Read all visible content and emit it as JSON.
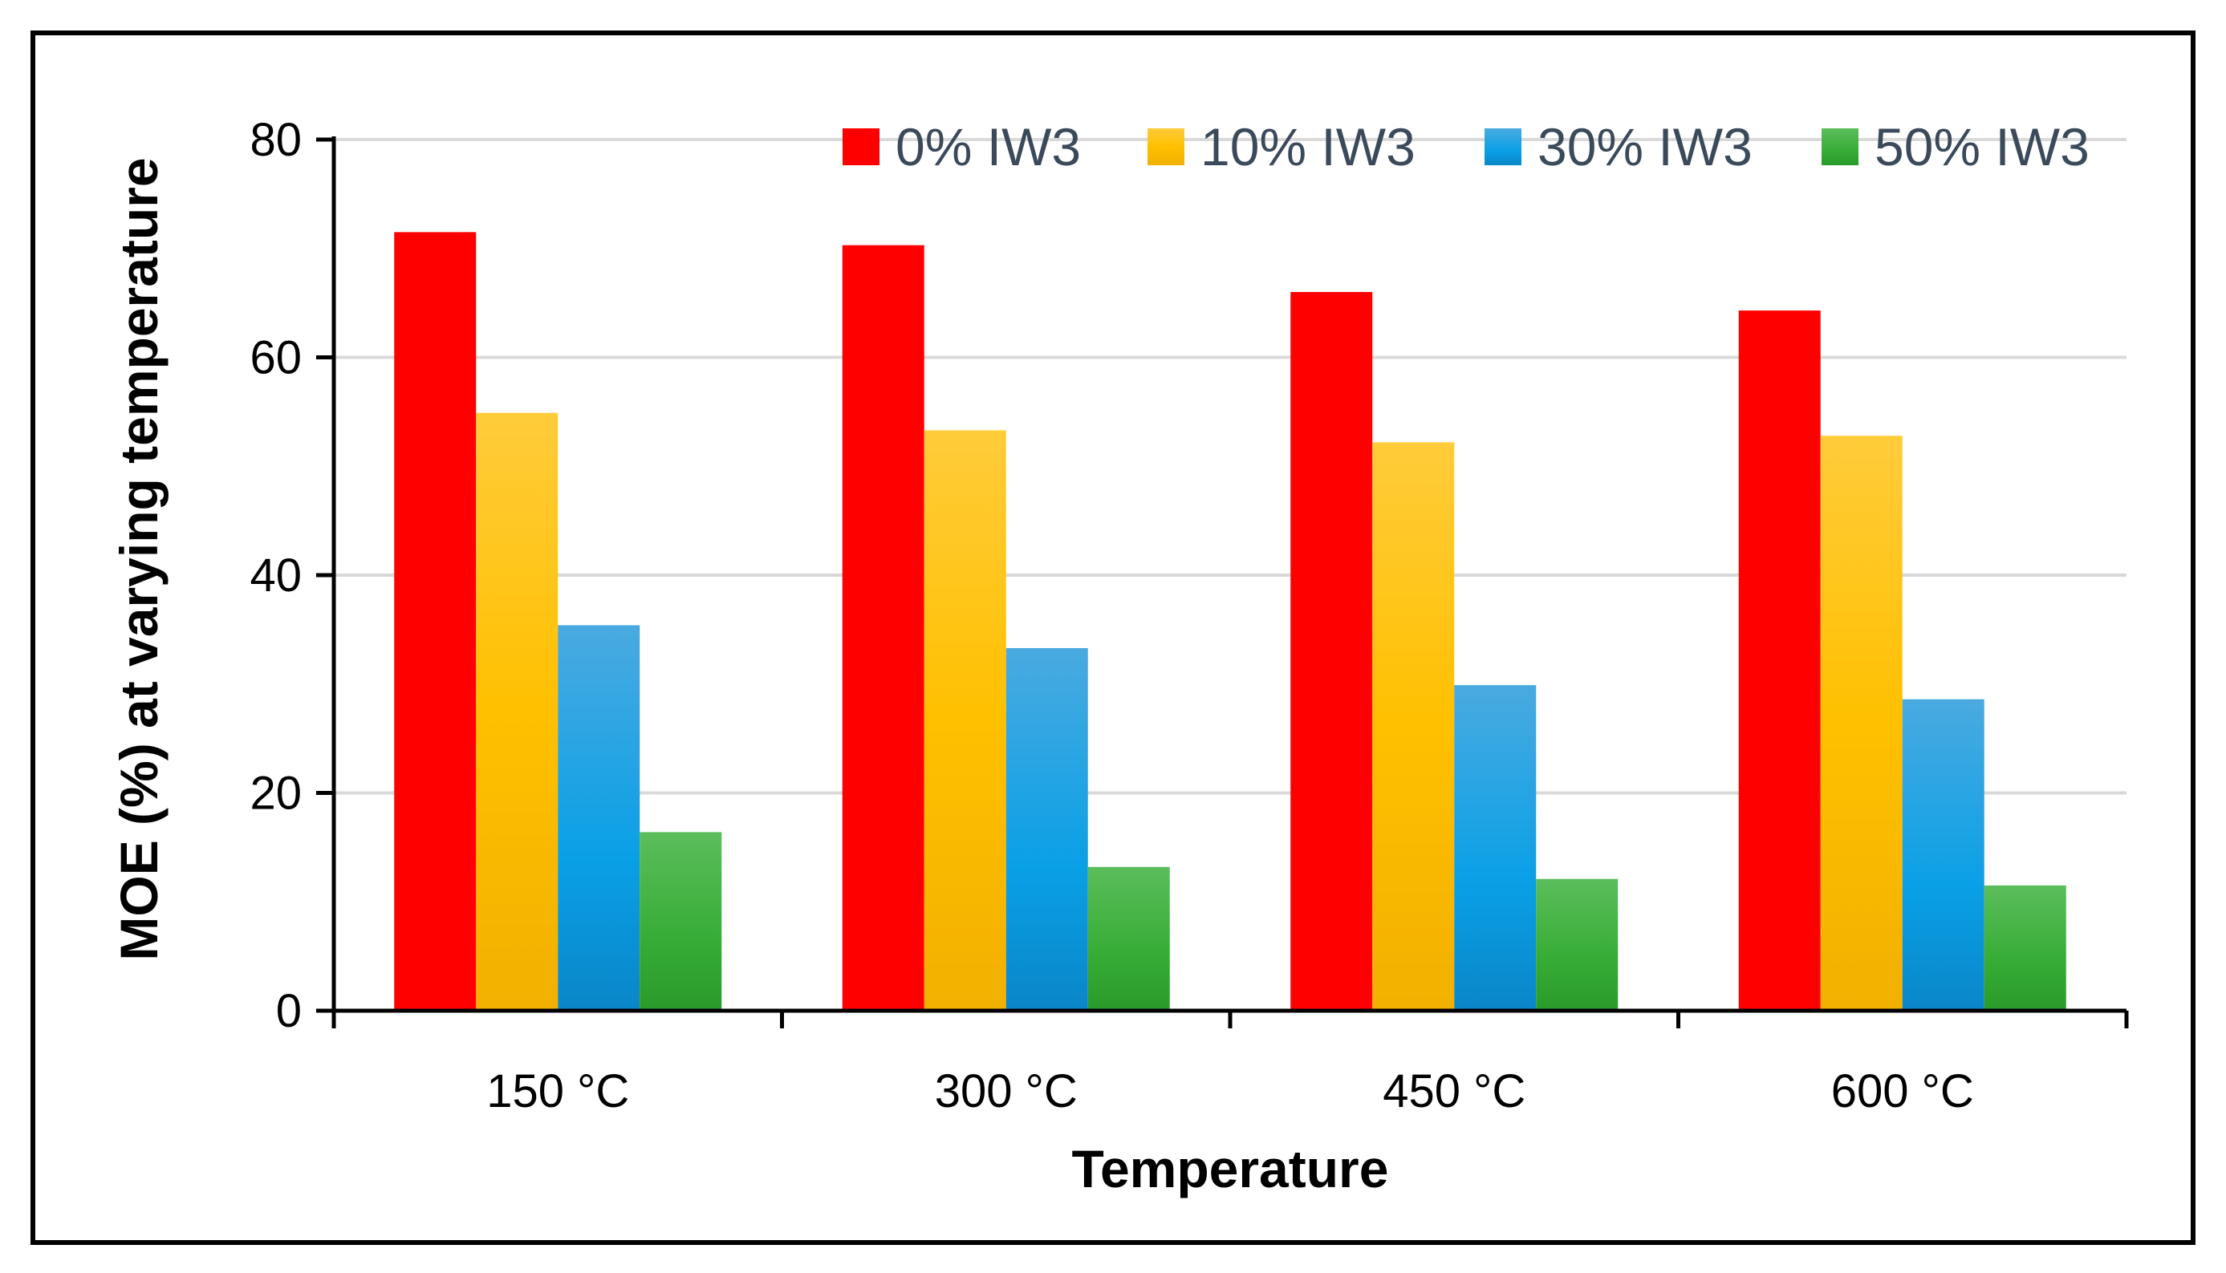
{
  "chart_data": {
    "type": "bar",
    "categories": [
      "150  °C",
      "300  °C",
      "450  °C",
      "600  °C"
    ],
    "series": [
      {
        "name": "0% IW3",
        "color": "#ff0000",
        "values": [
          71.5,
          70.3,
          66.0,
          64.3
        ]
      },
      {
        "name": "10% IW3",
        "color": "#ffc000",
        "values": [
          54.9,
          53.3,
          52.2,
          52.8
        ]
      },
      {
        "name": "30% IW3",
        "color": "#1f9ee0",
        "values": [
          35.4,
          33.3,
          29.9,
          28.6
        ]
      },
      {
        "name": "50% IW3",
        "color": "#3cb043",
        "values": [
          16.4,
          13.2,
          12.1,
          11.5
        ]
      }
    ],
    "xlabel": "Temperature",
    "ylabel": "MOE (%) at varying temperature",
    "ylim": [
      0,
      80
    ],
    "yticks": [
      0,
      20,
      40,
      60,
      80
    ],
    "grid": true,
    "legend_position": "top"
  }
}
